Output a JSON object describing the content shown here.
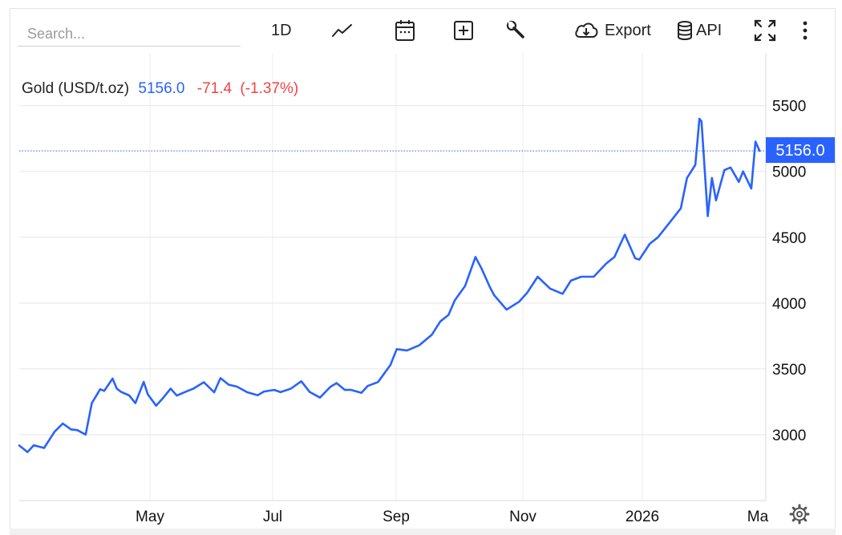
{
  "search": {
    "placeholder": "Search..."
  },
  "toolbar": {
    "interval_label": "1D",
    "export_label": "Export",
    "api_label": "API",
    "icons": [
      "line-chart-icon",
      "calendar-icon",
      "add-box-icon",
      "wrench-icon",
      "cloud-download-icon",
      "database-icon",
      "fullscreen-icon",
      "more-vert-icon",
      "settings-icon"
    ]
  },
  "header": {
    "name": "Gold (USD/t.oz)",
    "last": "5156.0",
    "change": "-71.4",
    "change_pct": "(-1.37%)",
    "last_color": "#2962ff",
    "change_color": "#ef4444"
  },
  "chart_data": {
    "type": "line",
    "series": [
      {
        "name": "Gold (USD/t.oz)",
        "color": "#2962ff",
        "x": [
          "2025-03-07",
          "2025-03-11",
          "2025-03-14",
          "2025-03-19",
          "2025-03-24",
          "2025-03-28",
          "2025-04-01",
          "2025-04-04",
          "2025-04-08",
          "2025-04-11",
          "2025-04-15",
          "2025-04-17",
          "2025-04-21",
          "2025-04-23",
          "2025-04-25",
          "2025-04-29",
          "2025-05-02",
          "2025-05-06",
          "2025-05-08",
          "2025-05-12",
          "2025-05-15",
          "2025-05-19",
          "2025-05-22",
          "2025-05-27",
          "2025-05-30",
          "2025-06-04",
          "2025-06-09",
          "2025-06-12",
          "2025-06-16",
          "2025-06-20",
          "2025-06-25",
          "2025-06-30",
          "2025-07-03",
          "2025-07-08",
          "2025-07-11",
          "2025-07-16",
          "2025-07-21",
          "2025-07-25",
          "2025-07-30",
          "2025-08-04",
          "2025-08-07",
          "2025-08-11",
          "2025-08-14",
          "2025-08-19",
          "2025-08-22",
          "2025-08-27",
          "2025-09-02",
          "2025-09-05",
          "2025-09-10",
          "2025-09-16",
          "2025-09-22",
          "2025-09-26",
          "2025-09-30",
          "2025-10-03",
          "2025-10-08",
          "2025-10-13",
          "2025-10-16",
          "2025-10-20",
          "2025-10-22",
          "2025-10-28",
          "2025-11-03",
          "2025-11-07",
          "2025-11-12",
          "2025-11-18",
          "2025-11-24",
          "2025-11-28",
          "2025-12-03",
          "2025-12-09",
          "2025-12-15",
          "2025-12-19",
          "2025-12-24",
          "2025-12-29",
          "2025-12-31",
          "2026-01-05",
          "2026-01-09",
          "2026-01-14",
          "2026-01-20",
          "2026-01-23",
          "2026-01-27",
          "2026-01-29",
          "2026-01-30",
          "2026-02-02",
          "2026-02-04",
          "2026-02-06",
          "2026-02-10",
          "2026-02-13",
          "2026-02-17",
          "2026-02-19",
          "2026-02-23",
          "2026-02-25",
          "2026-02-27"
        ],
        "y": [
          2918,
          2868,
          2920,
          2899,
          3022,
          3085,
          3040,
          3035,
          3000,
          3240,
          3345,
          3333,
          3426,
          3351,
          3326,
          3298,
          3240,
          3401,
          3307,
          3220,
          3272,
          3350,
          3297,
          3331,
          3350,
          3399,
          3322,
          3430,
          3380,
          3365,
          3322,
          3300,
          3328,
          3340,
          3323,
          3350,
          3406,
          3325,
          3282,
          3363,
          3392,
          3340,
          3340,
          3318,
          3370,
          3400,
          3530,
          3650,
          3640,
          3680,
          3760,
          3860,
          3910,
          4020,
          4130,
          4350,
          4260,
          4120,
          4060,
          3950,
          4010,
          4080,
          4200,
          4110,
          4070,
          4170,
          4200,
          4200,
          4300,
          4350,
          4520,
          4340,
          4330,
          4450,
          4500,
          4600,
          4720,
          4950,
          5050,
          5400,
          5380,
          4660,
          4950,
          4780,
          5010,
          5030,
          4920,
          5000,
          4870,
          5227,
          5156
        ]
      }
    ],
    "x_ticks": [
      "May",
      "Jul",
      "Sep",
      "Nov",
      "2026",
      "Ma"
    ],
    "y_ticks": [
      3000,
      3500,
      4000,
      4500,
      5000,
      5500
    ],
    "ylim": [
      2500,
      5900
    ],
    "xlim": [
      "2025-03-07",
      "2026-03-02"
    ],
    "last_value_label": "5156.0",
    "last_value": 5156.0,
    "grid": true,
    "legend": "none"
  }
}
